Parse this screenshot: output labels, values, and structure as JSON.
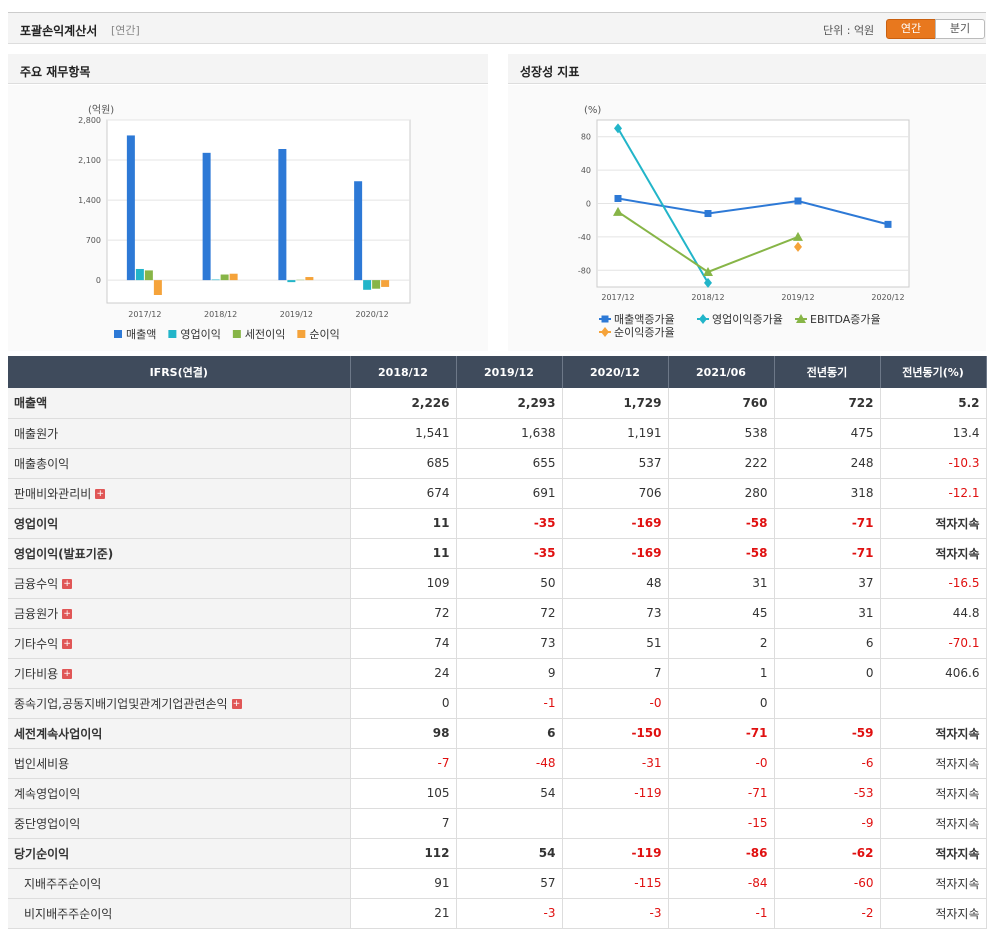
{
  "header": {
    "title": "포괄손익계산서",
    "subtitle": "[연간]",
    "unit_label": "단위 : 억원",
    "toggle_annual": "연간",
    "toggle_quarter": "분기"
  },
  "left_panel_title": "주요 재무항목",
  "right_panel_title": "성장성 지표",
  "colors": {
    "blue": "#2d79d6",
    "cyan": "#22b5c9",
    "green": "#87b547",
    "orange": "#f5a33a",
    "header_dark": "#3f4b5c",
    "accent": "#e8781e"
  },
  "chart_data": [
    {
      "type": "bar",
      "unit_label": "(억원)",
      "categories": [
        "2017/12",
        "2018/12",
        "2019/12",
        "2020/12"
      ],
      "ylim": [
        -400,
        2800
      ],
      "yticks": [
        "2,800",
        "2,100",
        "1,400",
        "700",
        "0"
      ],
      "series": [
        {
          "name": "매출액",
          "color": "#2d79d6",
          "values": [
            2530,
            2226,
            2293,
            1729
          ]
        },
        {
          "name": "영업이익",
          "color": "#22b5c9",
          "values": [
            195,
            11,
            -35,
            -169
          ]
        },
        {
          "name": "세전이익",
          "color": "#87b547",
          "values": [
            170,
            98,
            6,
            -150
          ]
        },
        {
          "name": "순이익",
          "color": "#f5a33a",
          "values": [
            -260,
            112,
            54,
            -119
          ]
        }
      ],
      "legend": "bottom"
    },
    {
      "type": "line",
      "unit_label": "(%)",
      "categories": [
        "2017/12",
        "2018/12",
        "2019/12",
        "2020/12"
      ],
      "ylim": [
        -100,
        100
      ],
      "yticks": [
        "80",
        "40",
        "0",
        "-40",
        "-80"
      ],
      "series": [
        {
          "name": "매출액증가율",
          "color": "#2d79d6",
          "marker": "square",
          "values": [
            6,
            -12,
            3,
            -25
          ]
        },
        {
          "name": "영업이익증가율",
          "color": "#22b5c9",
          "marker": "diamond",
          "values": [
            90,
            -95,
            null,
            null
          ]
        },
        {
          "name": "EBITDA증가율",
          "color": "#87b547",
          "marker": "triangle",
          "values": [
            -10,
            -82,
            -40,
            null
          ]
        },
        {
          "name": "순이익증가율",
          "color": "#f5a33a",
          "marker": "diamond",
          "values": [
            null,
            null,
            -52,
            null
          ]
        }
      ],
      "legend": "bottom"
    }
  ],
  "table": {
    "headers": [
      "IFRS(연결)",
      "2018/12",
      "2019/12",
      "2020/12",
      "2021/06",
      "전년동기",
      "전년동기(%)"
    ],
    "rows": [
      {
        "label": "매출액",
        "bold": true,
        "indent": false,
        "plus": false,
        "values": [
          "2,226",
          "2,293",
          "1,729",
          "760",
          "722",
          "5.2"
        ]
      },
      {
        "label": "매출원가",
        "bold": false,
        "indent": false,
        "plus": false,
        "values": [
          "1,541",
          "1,638",
          "1,191",
          "538",
          "475",
          "13.4"
        ]
      },
      {
        "label": "매출총이익",
        "bold": false,
        "indent": false,
        "plus": false,
        "values": [
          "685",
          "655",
          "537",
          "222",
          "248",
          "-10.3"
        ]
      },
      {
        "label": "판매비와관리비",
        "bold": false,
        "indent": false,
        "plus": true,
        "values": [
          "674",
          "691",
          "706",
          "280",
          "318",
          "-12.1"
        ]
      },
      {
        "label": "영업이익",
        "bold": true,
        "indent": false,
        "plus": false,
        "values": [
          "11",
          "-35",
          "-169",
          "-58",
          "-71",
          "적자지속"
        ]
      },
      {
        "label": "영업이익(발표기준)",
        "bold": true,
        "indent": false,
        "plus": false,
        "values": [
          "11",
          "-35",
          "-169",
          "-58",
          "-71",
          "적자지속"
        ]
      },
      {
        "label": "금융수익",
        "bold": false,
        "indent": false,
        "plus": true,
        "values": [
          "109",
          "50",
          "48",
          "31",
          "37",
          "-16.5"
        ]
      },
      {
        "label": "금융원가",
        "bold": false,
        "indent": false,
        "plus": true,
        "values": [
          "72",
          "72",
          "73",
          "45",
          "31",
          "44.8"
        ]
      },
      {
        "label": "기타수익",
        "bold": false,
        "indent": false,
        "plus": true,
        "values": [
          "74",
          "73",
          "51",
          "2",
          "6",
          "-70.1"
        ]
      },
      {
        "label": "기타비용",
        "bold": false,
        "indent": false,
        "plus": true,
        "values": [
          "24",
          "9",
          "7",
          "1",
          "0",
          "406.6"
        ]
      },
      {
        "label": "종속기업,공동지배기업및관계기업관련손익",
        "bold": false,
        "indent": false,
        "plus": true,
        "values": [
          "0",
          "-1",
          "-0",
          "0",
          "",
          ""
        ]
      },
      {
        "label": "세전계속사업이익",
        "bold": true,
        "indent": false,
        "plus": false,
        "values": [
          "98",
          "6",
          "-150",
          "-71",
          "-59",
          "적자지속"
        ]
      },
      {
        "label": "법인세비용",
        "bold": false,
        "indent": false,
        "plus": false,
        "values": [
          "-7",
          "-48",
          "-31",
          "-0",
          "-6",
          "적자지속"
        ]
      },
      {
        "label": "계속영업이익",
        "bold": false,
        "indent": false,
        "plus": false,
        "values": [
          "105",
          "54",
          "-119",
          "-71",
          "-53",
          "적자지속"
        ]
      },
      {
        "label": "중단영업이익",
        "bold": false,
        "indent": false,
        "plus": false,
        "values": [
          "7",
          "",
          "",
          "-15",
          "-9",
          "적자지속"
        ]
      },
      {
        "label": "당기순이익",
        "bold": true,
        "indent": false,
        "plus": false,
        "values": [
          "112",
          "54",
          "-119",
          "-86",
          "-62",
          "적자지속"
        ]
      },
      {
        "label": "지배주주순이익",
        "bold": false,
        "indent": true,
        "plus": false,
        "values": [
          "91",
          "57",
          "-115",
          "-84",
          "-60",
          "적자지속"
        ]
      },
      {
        "label": "비지배주주순이익",
        "bold": false,
        "indent": true,
        "plus": false,
        "values": [
          "21",
          "-3",
          "-3",
          "-1",
          "-2",
          "적자지속"
        ]
      }
    ]
  }
}
